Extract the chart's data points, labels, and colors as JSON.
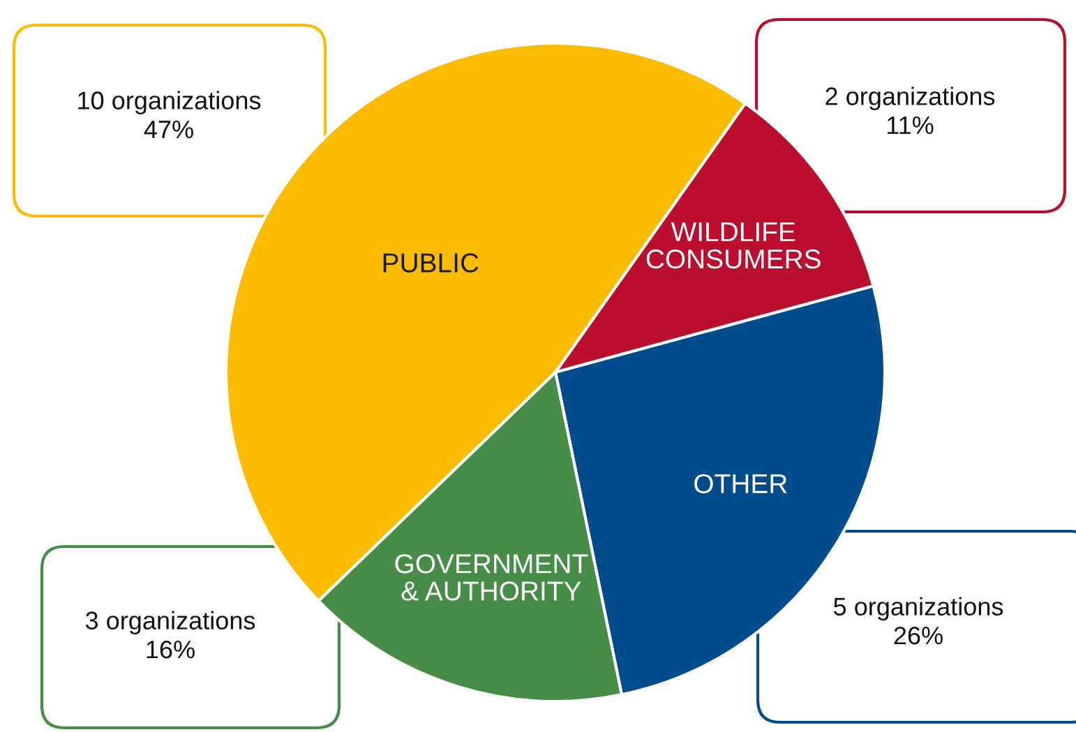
{
  "chart_data": {
    "type": "pie",
    "categories": [
      "PUBLIC",
      "WILDLIFE\nCONSUMERS",
      "OTHER",
      "GOVERNMENT\n& AUTHORITY"
    ],
    "values": [
      47,
      11,
      26,
      16
    ],
    "value_labels": [
      "10 organizations\n47%",
      "2 organizations\n11%",
      "5 organizations\n26%",
      "3 organizations\n16%"
    ],
    "colors": [
      "#fbbc00",
      "#bb0d2e",
      "#004c8c",
      "#478c47"
    ]
  }
}
